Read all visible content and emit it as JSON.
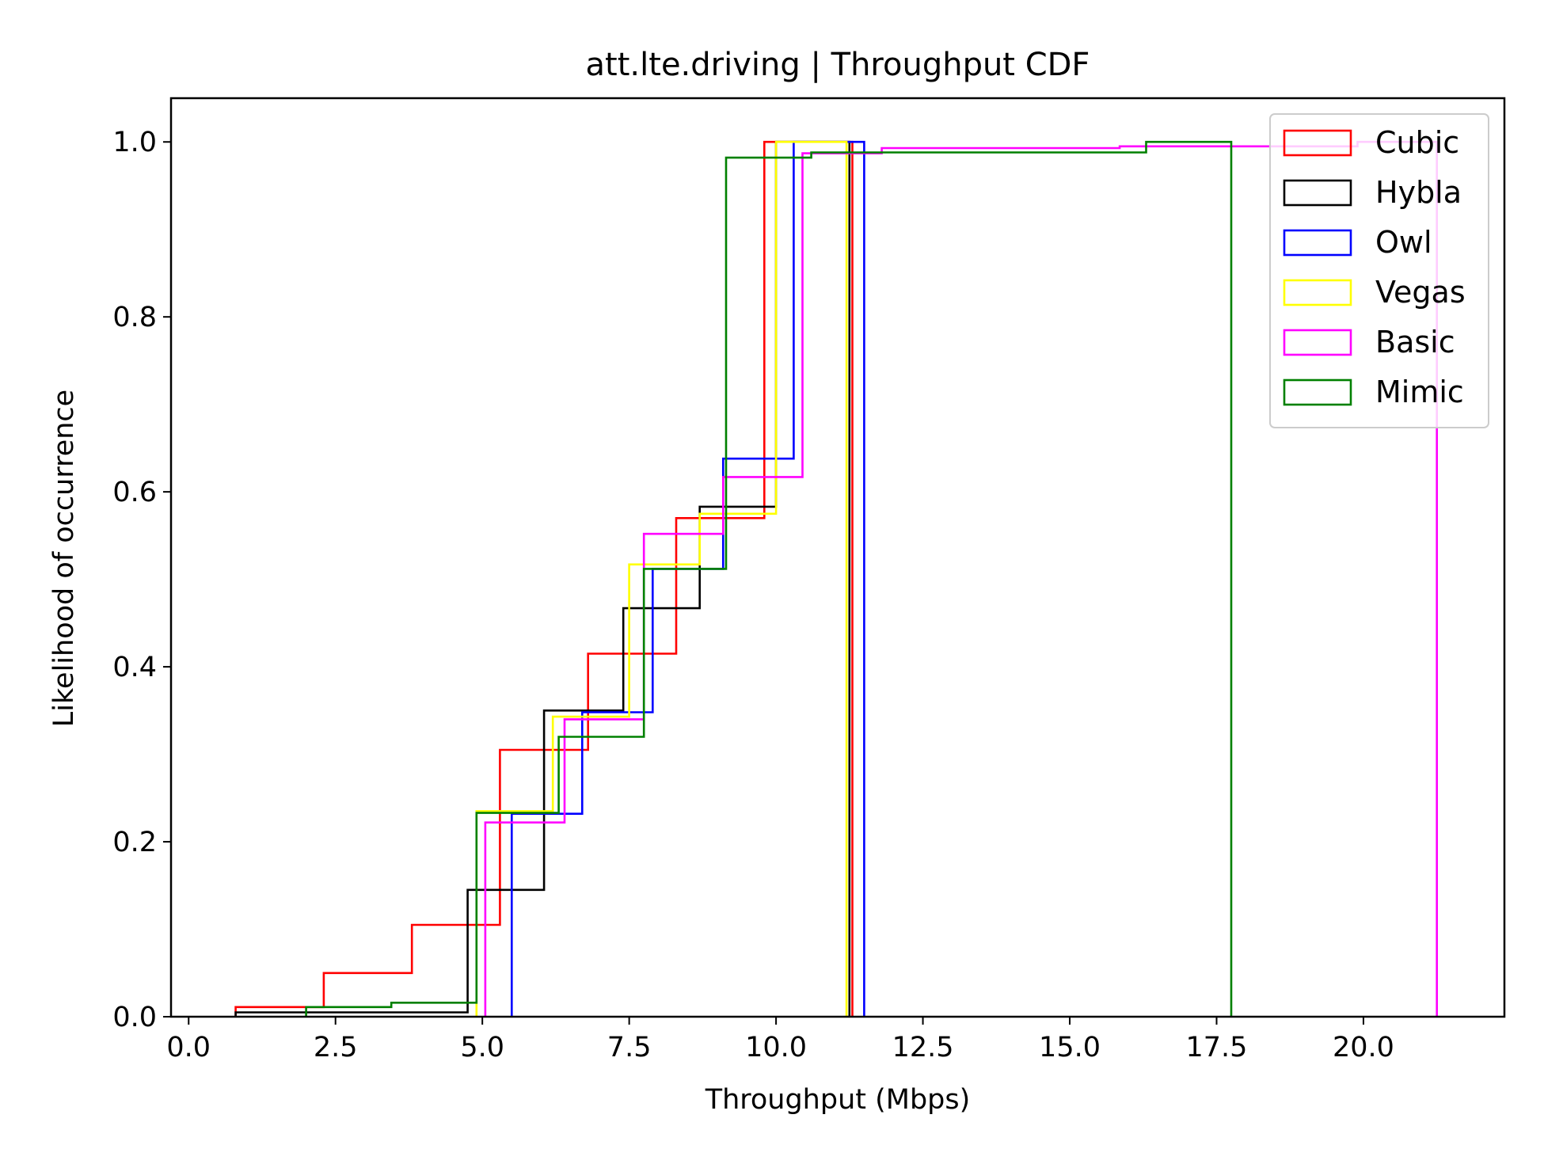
{
  "chart_data": {
    "type": "line",
    "title": "att.lte.driving | Throughput CDF",
    "xlabel": "Throughput (Mbps)",
    "ylabel": "Likelihood of occurrence",
    "xlim": [
      -0.3,
      22.4
    ],
    "ylim": [
      0.0,
      1.05
    ],
    "xticks": [
      0.0,
      2.5,
      5.0,
      7.5,
      10.0,
      12.5,
      15.0,
      17.5,
      20.0
    ],
    "xtick_labels": [
      "0.0",
      "2.5",
      "5.0",
      "7.5",
      "10.0",
      "12.5",
      "15.0",
      "17.5",
      "20.0"
    ],
    "yticks": [
      0.0,
      0.2,
      0.4,
      0.6,
      0.8,
      1.0
    ],
    "ytick_labels": [
      "0.0",
      "0.2",
      "0.4",
      "0.6",
      "0.8",
      "1.0"
    ],
    "grid": false,
    "legend_position": "top-right",
    "series": [
      {
        "name": "Cubic",
        "color": "#ff0000",
        "edges": [
          0.8,
          2.3,
          3.8,
          5.3,
          6.8,
          8.3,
          9.8,
          11.3
        ],
        "cdf": [
          0.011,
          0.05,
          0.105,
          0.305,
          0.415,
          0.57,
          1.0
        ]
      },
      {
        "name": "Hybla",
        "color": "#000000",
        "edges": [
          0.8,
          2.1,
          3.4,
          4.75,
          6.05,
          7.4,
          8.7,
          10.0,
          11.25
        ],
        "cdf": [
          0.005,
          0.005,
          0.005,
          0.145,
          0.35,
          0.467,
          0.583,
          1.0
        ]
      },
      {
        "name": "Owl",
        "color": "#0000ff",
        "edges": [
          5.5,
          6.7,
          7.9,
          9.1,
          10.3,
          11.5
        ],
        "cdf": [
          0.232,
          0.348,
          0.512,
          0.638,
          1.0
        ]
      },
      {
        "name": "Vegas",
        "color": "#ffff00",
        "edges": [
          4.9,
          6.2,
          7.5,
          8.7,
          10.0,
          11.2
        ],
        "cdf": [
          0.235,
          0.343,
          0.517,
          0.575,
          1.0
        ]
      },
      {
        "name": "Basic",
        "color": "#ff00ff",
        "edges": [
          5.05,
          6.4,
          7.75,
          9.1,
          10.45,
          11.8,
          13.15,
          14.5,
          15.85,
          17.2,
          18.55,
          19.9,
          21.25
        ],
        "cdf": [
          0.222,
          0.34,
          0.552,
          0.617,
          0.987,
          0.993,
          0.993,
          0.993,
          0.995,
          0.995,
          0.995,
          1.0
        ]
      },
      {
        "name": "Mimic",
        "color": "#008000",
        "edges": [
          2.0,
          3.45,
          4.9,
          6.3,
          7.75,
          9.15,
          10.6,
          12.0,
          13.45,
          14.9,
          16.3,
          17.75
        ],
        "cdf": [
          0.011,
          0.016,
          0.233,
          0.32,
          0.512,
          0.982,
          0.988,
          0.988,
          0.988,
          0.988,
          1.0
        ]
      }
    ]
  }
}
